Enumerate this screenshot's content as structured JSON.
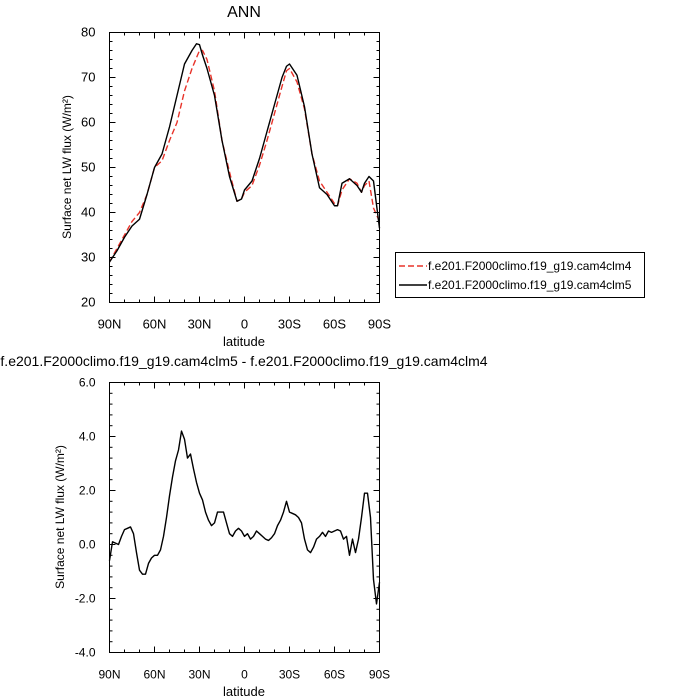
{
  "chart_data": [
    {
      "type": "line",
      "title": "ANN",
      "xlabel": "latitude",
      "ylabel": "Surface net LW flux (W/m²)",
      "xlim": [
        90,
        -90
      ],
      "ylim": [
        20,
        80
      ],
      "x_ticks": [
        90,
        60,
        30,
        0,
        -30,
        -60,
        -90
      ],
      "x_tick_labels": [
        "90N",
        "60N",
        "30N",
        "0",
        "30S",
        "60S",
        "90S"
      ],
      "y_ticks": [
        20,
        30,
        40,
        50,
        60,
        70,
        80
      ],
      "y_tick_labels": [
        "20",
        "30",
        "40",
        "50",
        "60",
        "70",
        "80"
      ],
      "legend_placement": "right",
      "series": [
        {
          "name": "f.e201.F2000climo.f19_g19.cam4clm4",
          "color": "#e8332a",
          "dash": "dashed",
          "x": [
            90,
            85,
            80,
            75,
            70,
            65,
            60,
            55,
            50,
            45,
            40,
            35,
            30,
            28,
            25,
            20,
            15,
            10,
            5,
            2,
            0,
            -5,
            -10,
            -15,
            -20,
            -25,
            -28,
            -30,
            -35,
            -40,
            -45,
            -50,
            -55,
            -60,
            -62,
            -65,
            -70,
            -75,
            -78,
            -80,
            -83,
            -86,
            -90
          ],
          "y": [
            29,
            32,
            35,
            38,
            40,
            44,
            50,
            51.5,
            56,
            60,
            67,
            72,
            76,
            76,
            74,
            67,
            56,
            49,
            42.5,
            43,
            44.5,
            46,
            50.5,
            56,
            62,
            68,
            71.5,
            72,
            69,
            63,
            53,
            47,
            44.5,
            42,
            41.5,
            45,
            47.5,
            46.5,
            44.5,
            46,
            47,
            41,
            38
          ]
        },
        {
          "name": "f.e201.F2000climo.f19_g19.cam4clm5",
          "color": "#000000",
          "dash": "solid",
          "x": [
            90,
            85,
            80,
            75,
            70,
            65,
            60,
            55,
            50,
            45,
            40,
            35,
            32,
            30,
            28,
            25,
            20,
            15,
            10,
            5,
            2,
            0,
            -5,
            -10,
            -15,
            -20,
            -25,
            -28,
            -30,
            -35,
            -40,
            -45,
            -50,
            -55,
            -60,
            -62,
            -65,
            -70,
            -75,
            -78,
            -80,
            -83,
            -86,
            -90
          ],
          "y": [
            29,
            31.5,
            34.5,
            37,
            38.5,
            44,
            50,
            53,
            59,
            66,
            73,
            76,
            77.5,
            77.3,
            75,
            72,
            66,
            56,
            48,
            42.5,
            43,
            45,
            47,
            52,
            58,
            64,
            70,
            72.5,
            73,
            70.5,
            63.5,
            53,
            45.5,
            44,
            41.5,
            41.5,
            46.5,
            47.5,
            46,
            44.5,
            46.5,
            48,
            47,
            36.5
          ]
        }
      ]
    },
    {
      "type": "line",
      "title": "f.e201.F2000climo.f19_g19.cam4clm5 - f.e201.F2000climo.f19_g19.cam4clm4",
      "xlabel": "latitude",
      "ylabel": "Surface net LW flux (W/m²)",
      "xlim": [
        90,
        -90
      ],
      "ylim": [
        -4,
        6
      ],
      "x_ticks": [
        90,
        60,
        30,
        0,
        -30,
        -60,
        -90
      ],
      "x_tick_labels": [
        "90N",
        "60N",
        "30N",
        "0",
        "30S",
        "60S",
        "90S"
      ],
      "y_ticks": [
        -4,
        -2,
        0,
        2,
        4,
        6
      ],
      "y_tick_labels": [
        "-4.0",
        "-2.0",
        "0.0",
        "2.0",
        "4.0",
        "6.0"
      ],
      "series": [
        {
          "color": "#000000",
          "x": [
            90,
            88,
            86,
            84,
            82,
            80,
            78,
            76,
            74,
            72,
            70,
            68,
            66,
            64,
            62,
            60,
            58,
            56,
            54,
            52,
            50,
            48,
            46,
            44,
            42,
            40,
            38,
            36,
            34,
            32,
            30,
            28,
            26,
            24,
            22,
            20,
            18,
            16,
            14,
            12,
            10,
            8,
            6,
            4,
            2,
            0,
            -2,
            -4,
            -6,
            -8,
            -10,
            -12,
            -14,
            -16,
            -18,
            -20,
            -22,
            -24,
            -26,
            -28,
            -30,
            -32,
            -34,
            -36,
            -38,
            -40,
            -42,
            -44,
            -46,
            -48,
            -50,
            -52,
            -54,
            -56,
            -58,
            -60,
            -62,
            -64,
            -66,
            -68,
            -70,
            -72,
            -74,
            -76,
            -78,
            -80,
            -82,
            -84,
            -86,
            -88,
            -90
          ],
          "y": [
            -0.6,
            0.1,
            0.05,
            0.0,
            0.3,
            0.55,
            0.6,
            0.65,
            0.4,
            -0.3,
            -0.95,
            -1.1,
            -1.1,
            -0.7,
            -0.5,
            -0.4,
            -0.4,
            -0.2,
            0.3,
            1.0,
            1.8,
            2.5,
            3.1,
            3.5,
            4.2,
            3.9,
            3.2,
            3.35,
            2.8,
            2.3,
            1.9,
            1.65,
            1.2,
            0.9,
            0.7,
            0.8,
            1.2,
            1.2,
            1.2,
            0.8,
            0.4,
            0.3,
            0.5,
            0.6,
            0.5,
            0.3,
            0.4,
            0.2,
            0.3,
            0.5,
            0.4,
            0.3,
            0.2,
            0.15,
            0.25,
            0.4,
            0.7,
            0.9,
            1.2,
            1.6,
            1.2,
            1.15,
            1.1,
            1.0,
            0.8,
            0.2,
            -0.2,
            -0.3,
            -0.1,
            0.2,
            0.3,
            0.45,
            0.3,
            0.5,
            0.45,
            0.5,
            0.55,
            0.5,
            0.2,
            0.3,
            -0.4,
            0.2,
            -0.3,
            0.2,
            1.0,
            1.9,
            1.9,
            1.0,
            -1.3,
            -2.2,
            -1.4
          ]
        }
      ]
    }
  ]
}
